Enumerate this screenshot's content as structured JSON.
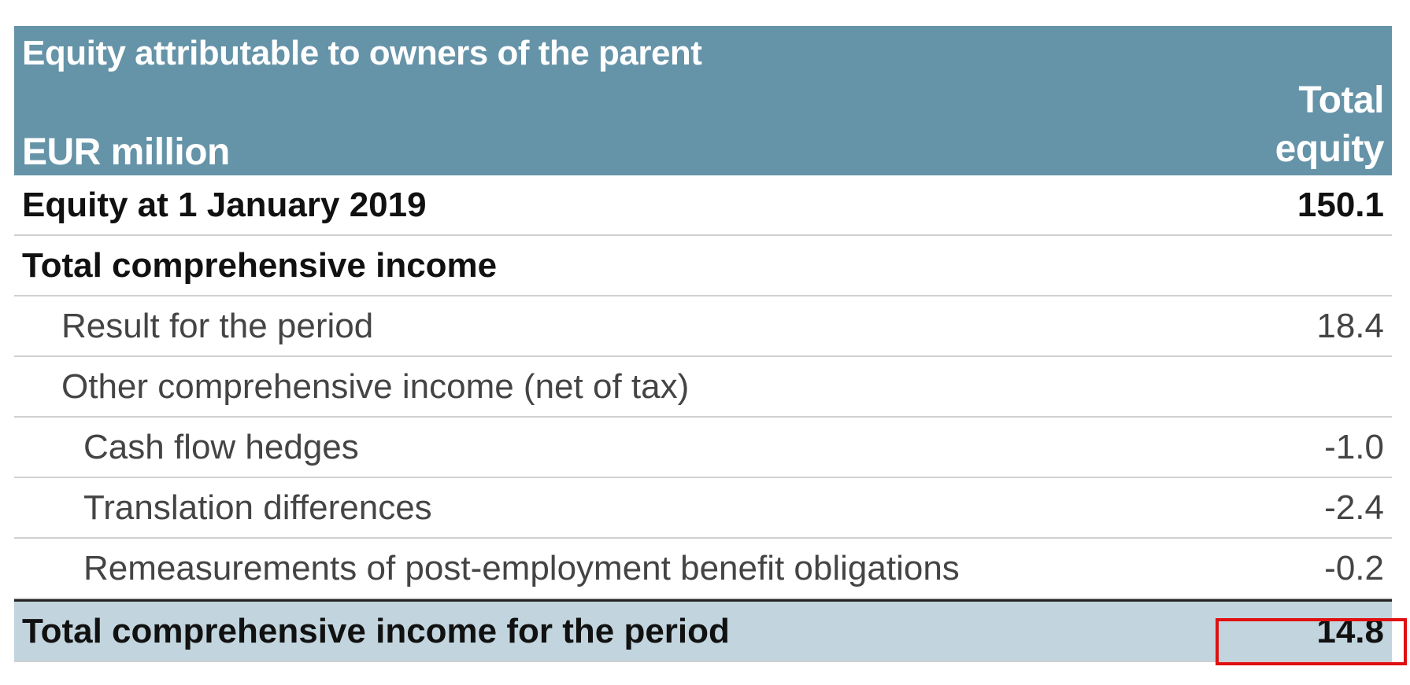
{
  "header": {
    "title": "Equity attributable to owners of the parent",
    "unit": "EUR million",
    "column_line1": "Total",
    "column_line2": "equity"
  },
  "rows": [
    {
      "label": "Equity at 1 January 2019",
      "value": "150.1"
    },
    {
      "label": "Total comprehensive income",
      "value": ""
    },
    {
      "label": "Result for the period",
      "value": "18.4"
    },
    {
      "label": "Other comprehensive income (net of  tax)",
      "value": ""
    },
    {
      "label": "Cash flow hedges",
      "value": "-1.0"
    },
    {
      "label": "Translation differences",
      "value": "-2.4"
    },
    {
      "label": "Remeasurements of post-employment benefit obligations",
      "value": "-0.2"
    },
    {
      "label": "Total comprehensive income for the period",
      "value": "14.8"
    }
  ],
  "colors": {
    "header_bg": "#6593a8",
    "total_row_bg": "#c2d5de",
    "highlight_border": "#e01010"
  }
}
